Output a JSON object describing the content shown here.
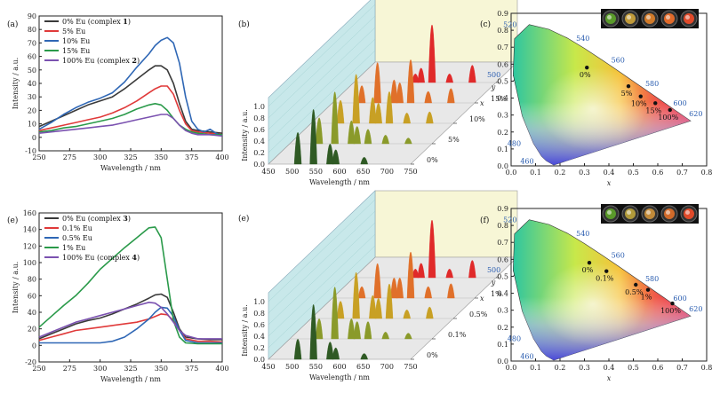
{
  "chart_data": [
    {
      "id": "a",
      "panel_label": "(a)",
      "type": "line",
      "xlabel": "Wavelength / nm",
      "ylabel": "Intensity / a.u.",
      "xlim": [
        250,
        400
      ],
      "ylim": [
        -10,
        90
      ],
      "xticks": [
        250,
        275,
        300,
        325,
        350,
        375,
        400
      ],
      "yticks": [
        -10,
        0,
        10,
        20,
        30,
        40,
        50,
        60,
        70,
        80,
        90
      ],
      "series": [
        {
          "name": "0% Eu (complex ",
          "bold": "1",
          "close": ")",
          "color": "#3a3a3a",
          "x": [
            250,
            260,
            270,
            280,
            290,
            300,
            310,
            320,
            330,
            340,
            345,
            350,
            355,
            360,
            365,
            370,
            375,
            380,
            390,
            400
          ],
          "y": [
            8,
            12,
            16,
            20,
            24,
            27,
            30,
            36,
            43,
            50,
            53,
            53,
            50,
            40,
            25,
            12,
            6,
            5,
            4,
            3
          ]
        },
        {
          "name": "5% Eu",
          "color": "#e03a3a",
          "x": [
            250,
            260,
            270,
            280,
            290,
            300,
            310,
            320,
            330,
            340,
            345,
            350,
            355,
            360,
            365,
            370,
            375,
            380,
            390,
            400
          ],
          "y": [
            5,
            7,
            9,
            11,
            13,
            15,
            18,
            22,
            27,
            33,
            36,
            38,
            38,
            32,
            20,
            10,
            5,
            4,
            3,
            2
          ]
        },
        {
          "name": "10% Eu",
          "color": "#2f67b5",
          "x": [
            250,
            260,
            270,
            280,
            290,
            300,
            310,
            320,
            330,
            340,
            345,
            350,
            355,
            360,
            365,
            370,
            375,
            380,
            385,
            390,
            395,
            400
          ],
          "y": [
            6,
            11,
            17,
            22,
            26,
            29,
            33,
            41,
            52,
            62,
            68,
            72,
            74,
            70,
            55,
            30,
            12,
            6,
            4,
            6,
            3,
            1
          ]
        },
        {
          "name": "15% Eu",
          "color": "#2a9a4a",
          "x": [
            250,
            260,
            270,
            280,
            290,
            300,
            310,
            320,
            330,
            340,
            345,
            350,
            355,
            360,
            365,
            370,
            375,
            380,
            390,
            400
          ],
          "y": [
            4,
            5,
            7,
            8,
            10,
            12,
            14,
            17,
            21,
            24,
            25,
            24,
            20,
            14,
            9,
            6,
            4,
            3,
            2,
            2
          ]
        },
        {
          "name": "100% Eu (complex ",
          "bold": "2",
          "close": ")",
          "color": "#7b52b0",
          "x": [
            250,
            260,
            270,
            280,
            290,
            300,
            310,
            320,
            330,
            340,
            345,
            350,
            355,
            360,
            365,
            370,
            375,
            380,
            390,
            400
          ],
          "y": [
            3,
            4,
            5,
            6,
            7,
            8,
            9,
            11,
            13,
            15,
            16,
            17,
            17,
            14,
            9,
            5,
            3,
            2,
            2,
            1
          ]
        }
      ]
    },
    {
      "id": "b",
      "panel_label": "(b)",
      "type": "waterfall",
      "xlabel": "Wavelength / nm",
      "ylabel": "Intensity / a.u.",
      "zlabel": "x",
      "xticks": [
        450,
        500,
        550,
        600,
        650,
        700,
        750
      ],
      "yticks": [
        "0.0",
        "0.2",
        "0.4",
        "0.6",
        "0.8",
        "1.0"
      ],
      "series_labels": [
        "0%",
        "5%",
        "10%",
        "15%",
        "100%"
      ],
      "series_colors": [
        "#2f5a24",
        "#8a9a2a",
        "#c8a024",
        "#e0702a",
        "#e02a2a"
      ],
      "peak_positions_nm": [
        512,
        545,
        580,
        592,
        615,
        652,
        700
      ],
      "peaks": [
        [
          0.55,
          0.95,
          0.35,
          0.25,
          0.0,
          0.12,
          0.0
        ],
        [
          0.45,
          0.9,
          0.4,
          0.3,
          0.25,
          0.15,
          0.1
        ],
        [
          0.4,
          0.85,
          0.45,
          0.35,
          0.55,
          0.18,
          0.2
        ],
        [
          0.3,
          0.7,
          0.4,
          0.35,
          0.75,
          0.2,
          0.25
        ],
        [
          0.0,
          0.0,
          0.15,
          0.25,
          1.0,
          0.15,
          0.3
        ]
      ]
    },
    {
      "id": "c",
      "panel_label": "(c)",
      "type": "cie",
      "xlabel": "x",
      "ylabel": "y",
      "xticks": [
        "0.0",
        "0.1",
        "0.2",
        "0.3",
        "0.4",
        "0.5",
        "0.6",
        "0.7",
        "0.8"
      ],
      "yticks": [
        "0.0",
        "0.1",
        "0.2",
        "0.3",
        "0.4",
        "0.5",
        "0.6",
        "0.7",
        "0.8",
        "0.9"
      ],
      "wavelength_labels": [
        "460",
        "480",
        "500",
        "520",
        "540",
        "560",
        "580",
        "600",
        "620"
      ],
      "points": [
        {
          "label": "0%",
          "x": 0.31,
          "y": 0.58
        },
        {
          "label": "5%",
          "x": 0.48,
          "y": 0.47
        },
        {
          "label": "10%",
          "x": 0.53,
          "y": 0.41
        },
        {
          "label": "15%",
          "x": 0.59,
          "y": 0.37
        },
        {
          "label": "100%",
          "x": 0.65,
          "y": 0.33
        }
      ],
      "photo_colors": [
        "#5a9a2a",
        "#c09a3a",
        "#d07a2a",
        "#e06a2a",
        "#e04a2a"
      ]
    },
    {
      "id": "e_line",
      "panel_label": "(e)",
      "type": "line",
      "xlabel": "Wavelength / nm",
      "ylabel": "Intensity / a.u.",
      "xlim": [
        250,
        400
      ],
      "ylim": [
        -20,
        160
      ],
      "xticks": [
        250,
        275,
        300,
        325,
        350,
        375,
        400
      ],
      "yticks": [
        -20,
        0,
        20,
        40,
        60,
        80,
        100,
        120,
        140,
        160
      ],
      "series": [
        {
          "name": "0% Eu (complex ",
          "bold": "3",
          "close": ")",
          "color": "#3a3a3a",
          "x": [
            250,
            260,
            270,
            280,
            290,
            300,
            310,
            320,
            330,
            340,
            345,
            350,
            355,
            360,
            365,
            370,
            380,
            390,
            400
          ],
          "y": [
            8,
            14,
            20,
            26,
            30,
            33,
            38,
            44,
            50,
            57,
            61,
            62,
            58,
            40,
            20,
            10,
            8,
            7,
            7
          ]
        },
        {
          "name": "0.1% Eu",
          "color": "#e03a3a",
          "x": [
            250,
            260,
            270,
            280,
            290,
            300,
            310,
            320,
            330,
            340,
            345,
            350,
            355,
            360,
            365,
            370,
            380,
            390,
            400
          ],
          "y": [
            6,
            10,
            14,
            18,
            20,
            22,
            24,
            26,
            28,
            32,
            35,
            38,
            37,
            30,
            18,
            8,
            5,
            5,
            4
          ]
        },
        {
          "name": "0.5% Eu",
          "color": "#2f67b5",
          "x": [
            250,
            260,
            270,
            280,
            290,
            300,
            310,
            320,
            330,
            340,
            345,
            350,
            355,
            360,
            365,
            370,
            380,
            390,
            400
          ],
          "y": [
            3,
            3,
            3,
            3,
            3,
            3,
            5,
            10,
            20,
            32,
            40,
            46,
            45,
            35,
            18,
            6,
            3,
            3,
            3
          ]
        },
        {
          "name": "1% Eu",
          "color": "#2a9a4a",
          "x": [
            250,
            260,
            270,
            280,
            290,
            300,
            310,
            320,
            330,
            335,
            340,
            345,
            350,
            355,
            360,
            365,
            370,
            380,
            390,
            400
          ],
          "y": [
            22,
            35,
            48,
            60,
            75,
            92,
            105,
            118,
            130,
            136,
            142,
            143,
            130,
            80,
            30,
            10,
            3,
            2,
            2,
            2
          ]
        },
        {
          "name": "100% Eu (complex ",
          "bold": "4",
          "close": ")",
          "color": "#7b52b0",
          "x": [
            250,
            260,
            270,
            280,
            290,
            300,
            310,
            320,
            330,
            340,
            345,
            350,
            355,
            360,
            365,
            370,
            380,
            390,
            400
          ],
          "y": [
            10,
            16,
            22,
            28,
            32,
            36,
            40,
            44,
            48,
            52,
            51,
            46,
            38,
            28,
            18,
            12,
            8,
            8,
            8
          ]
        }
      ]
    },
    {
      "id": "e_bars",
      "panel_label": "(e)",
      "type": "waterfall",
      "xlabel": "Wavelength / nm",
      "ylabel": "Intensity / a.u.",
      "zlabel": "x",
      "xticks": [
        450,
        500,
        550,
        600,
        650,
        700,
        750
      ],
      "yticks": [
        "0.0",
        "0.2",
        "0.4",
        "0.6",
        "0.8",
        "1.0"
      ],
      "series_labels": [
        "0%",
        "0.1%",
        "0.5%",
        "1%",
        "100%"
      ],
      "series_colors": [
        "#2f5a24",
        "#8a9a2a",
        "#c8a024",
        "#e0702a",
        "#e02a2a"
      ],
      "peak_positions_nm": [
        512,
        545,
        580,
        592,
        615,
        652,
        700
      ],
      "peaks": [
        [
          0.35,
          0.95,
          0.3,
          0.2,
          0.0,
          0.1,
          0.0
        ],
        [
          0.35,
          0.9,
          0.35,
          0.3,
          0.3,
          0.12,
          0.1
        ],
        [
          0.3,
          0.8,
          0.4,
          0.35,
          0.6,
          0.15,
          0.2
        ],
        [
          0.2,
          0.6,
          0.35,
          0.35,
          0.8,
          0.2,
          0.25
        ],
        [
          0.0,
          0.0,
          0.15,
          0.25,
          1.0,
          0.15,
          0.3
        ]
      ]
    },
    {
      "id": "f",
      "panel_label": "(f)",
      "type": "cie",
      "xlabel": "x",
      "ylabel": "y",
      "xticks": [
        "0.0",
        "0.1",
        "0.2",
        "0.3",
        "0.4",
        "0.5",
        "0.6",
        "0.7",
        "0.8"
      ],
      "yticks": [
        "0.0",
        "0.1",
        "0.2",
        "0.3",
        "0.4",
        "0.5",
        "0.6",
        "0.7",
        "0.8",
        "0.9"
      ],
      "wavelength_labels": [
        "460",
        "480",
        "500",
        "520",
        "540",
        "560",
        "580",
        "600",
        "620"
      ],
      "points": [
        {
          "label": "0%",
          "x": 0.32,
          "y": 0.58
        },
        {
          "label": "0.1%",
          "x": 0.39,
          "y": 0.53
        },
        {
          "label": "0.5%",
          "x": 0.51,
          "y": 0.45
        },
        {
          "label": "1%",
          "x": 0.56,
          "y": 0.42
        },
        {
          "label": "100%",
          "x": 0.66,
          "y": 0.34
        }
      ],
      "photo_colors": [
        "#5a9a2a",
        "#b09a3a",
        "#c08a3a",
        "#d06a2a",
        "#e04a2a"
      ]
    }
  ]
}
